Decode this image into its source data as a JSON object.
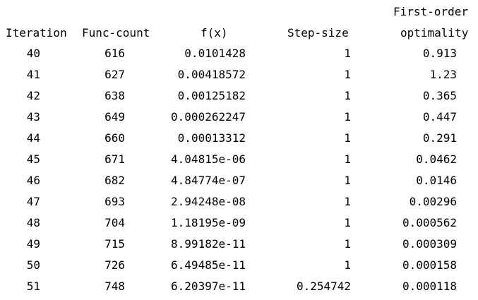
{
  "header": {
    "iteration": "Iteration",
    "func_count": "Func-count",
    "fx": "f(x)",
    "step_size": "Step-size",
    "first_order": "First-order",
    "optimality": "optimality"
  },
  "rows": [
    {
      "iteration": "40",
      "func_count": "616",
      "fx": "0.0101428",
      "step_size": "1",
      "optimality": "0.913"
    },
    {
      "iteration": "41",
      "func_count": "627",
      "fx": "0.00418572",
      "step_size": "1",
      "optimality": "1.23"
    },
    {
      "iteration": "42",
      "func_count": "638",
      "fx": "0.00125182",
      "step_size": "1",
      "optimality": "0.365"
    },
    {
      "iteration": "43",
      "func_count": "649",
      "fx": "0.000262247",
      "step_size": "1",
      "optimality": "0.447"
    },
    {
      "iteration": "44",
      "func_count": "660",
      "fx": "0.00013312",
      "step_size": "1",
      "optimality": "0.291"
    },
    {
      "iteration": "45",
      "func_count": "671",
      "fx": "4.04815e-06",
      "step_size": "1",
      "optimality": "0.0462"
    },
    {
      "iteration": "46",
      "func_count": "682",
      "fx": "4.84774e-07",
      "step_size": "1",
      "optimality": "0.0146"
    },
    {
      "iteration": "47",
      "func_count": "693",
      "fx": "2.94248e-08",
      "step_size": "1",
      "optimality": "0.00296"
    },
    {
      "iteration": "48",
      "func_count": "704",
      "fx": "1.18195e-09",
      "step_size": "1",
      "optimality": "0.000562"
    },
    {
      "iteration": "49",
      "func_count": "715",
      "fx": "8.99182e-11",
      "step_size": "1",
      "optimality": "0.000309"
    },
    {
      "iteration": "50",
      "func_count": "726",
      "fx": "6.49485e-11",
      "step_size": "1",
      "optimality": "0.000158"
    },
    {
      "iteration": "51",
      "func_count": "748",
      "fx": "6.20397e-11",
      "step_size": "0.254742",
      "optimality": "0.000118"
    }
  ]
}
